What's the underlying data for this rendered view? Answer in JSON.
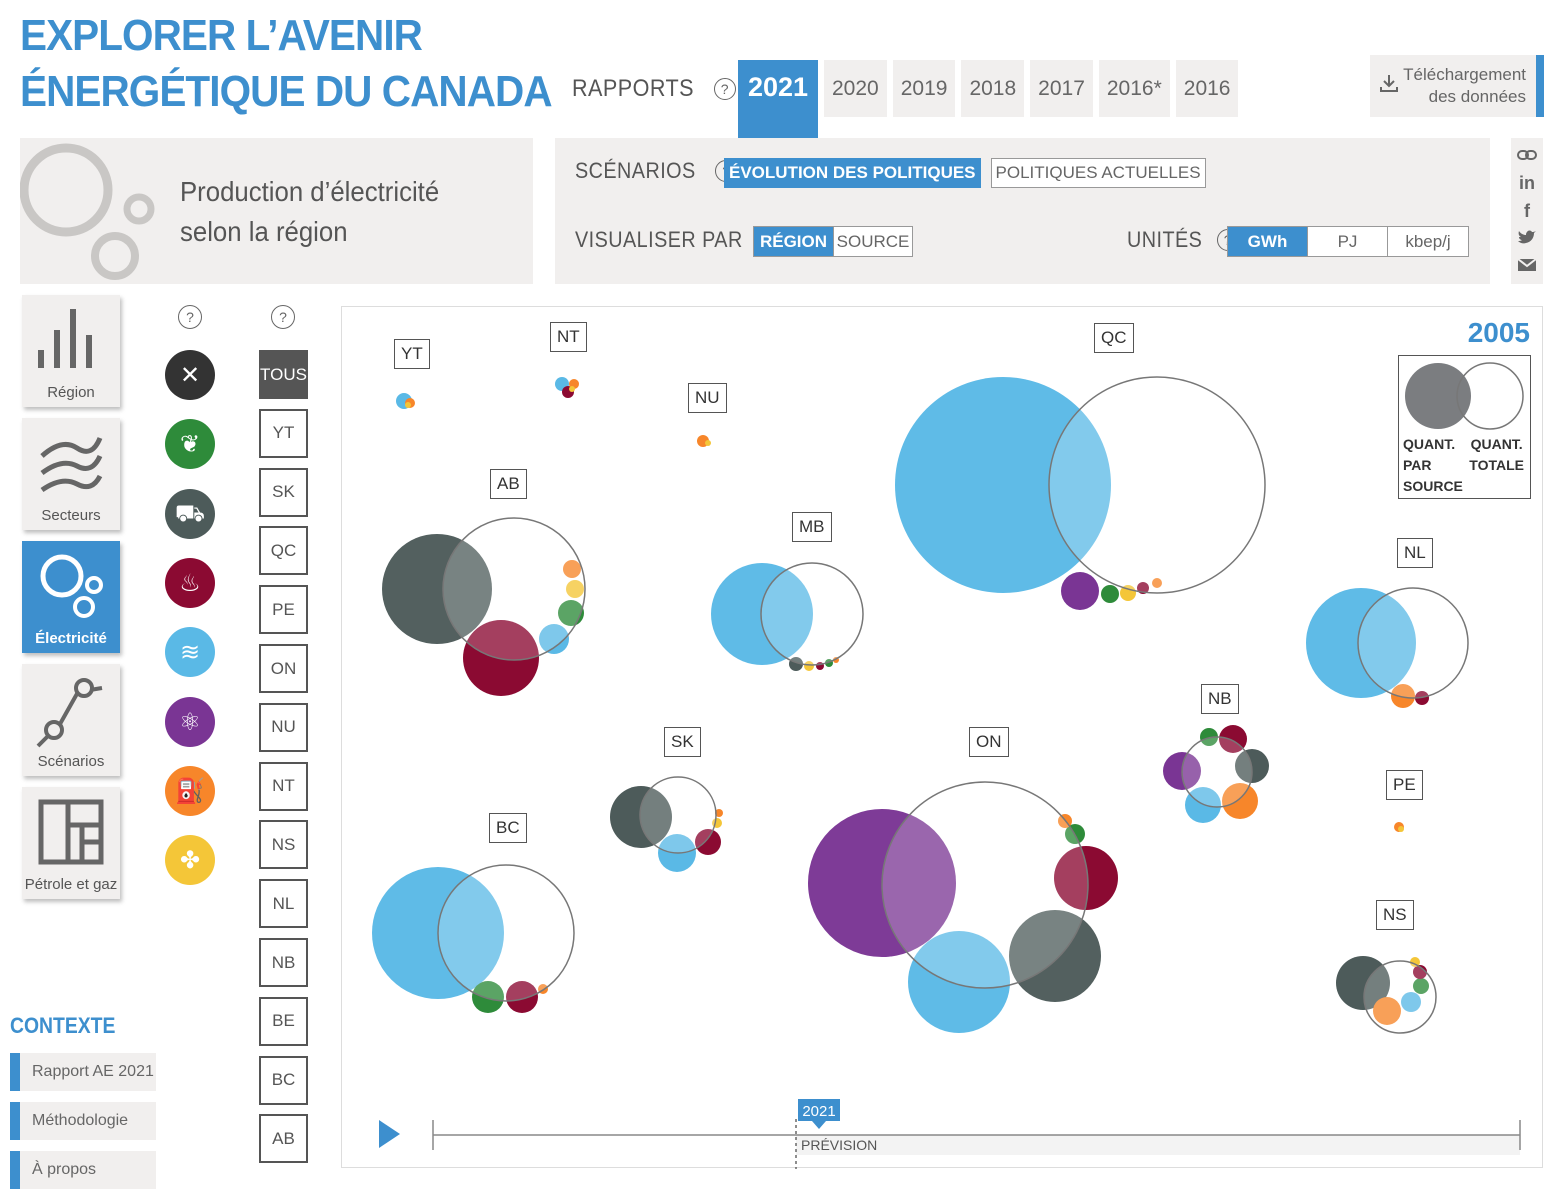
{
  "header": {
    "title_line1": "EXPLORER L’AVENIR",
    "title_line2": "ÉNERGÉTIQUE DU CANADA"
  },
  "reports": {
    "label": "RAPPORTS",
    "years": [
      "2021",
      "2020",
      "2019",
      "2018",
      "2017",
      "2016*",
      "2016"
    ],
    "active_year": "2021"
  },
  "download": {
    "line1": "Téléchargement",
    "line2": "des données"
  },
  "visualization": {
    "title_line1": "Production d’électricité",
    "title_line2": "selon la région"
  },
  "scenarios": {
    "label": "SCÉNARIOS",
    "options": [
      "ÉVOLUTION DES POLITIQUES",
      "POLITIQUES ACTUELLES"
    ],
    "active": "ÉVOLUTION DES POLITIQUES"
  },
  "view_by": {
    "label": "VISUALISER PAR",
    "options": [
      "RÉGION",
      "SOURCE"
    ],
    "active": "RÉGION"
  },
  "units": {
    "label": "UNITÉS",
    "options": [
      "GWh",
      "PJ",
      "kbep/j"
    ],
    "active": "GWh"
  },
  "share": {
    "icons": [
      "link-icon",
      "linkedin-icon",
      "facebook-icon",
      "twitter-icon",
      "email-icon"
    ],
    "linkedin_text": "in",
    "facebook_text": "f"
  },
  "nav": [
    {
      "label": "Région",
      "icon": "bar-chart-icon",
      "active": false
    },
    {
      "label": "Secteurs",
      "icon": "waves-icon",
      "active": false
    },
    {
      "label": "Électricité",
      "icon": "bubbles-icon",
      "active": true
    },
    {
      "label": "Scénarios",
      "icon": "scenario-icon",
      "active": false
    },
    {
      "label": "Pétrole et gaz",
      "icon": "layout-icon",
      "active": false
    }
  ],
  "help_symbol": "?",
  "sources": [
    {
      "name": "tout-effacer",
      "icon": "close-icon",
      "color": "#333333",
      "glyph": "✕"
    },
    {
      "name": "biomasse",
      "icon": "leaf-icon",
      "color": "#2e8b3a",
      "glyph": "❦"
    },
    {
      "name": "charbon",
      "icon": "coal-cart-icon",
      "color": "#4d5b5a",
      "glyph": "⛟"
    },
    {
      "name": "gaz",
      "icon": "flame-icon",
      "color": "#8b0a32",
      "glyph": "♨"
    },
    {
      "name": "hydro",
      "icon": "water-icon",
      "color": "#5ab9e6",
      "glyph": "≋"
    },
    {
      "name": "nucleaire",
      "icon": "atom-icon",
      "color": "#7a3594",
      "glyph": "⚛"
    },
    {
      "name": "petrole",
      "icon": "fuel-pump-icon",
      "color": "#f7862a",
      "glyph": "⛽"
    },
    {
      "name": "solaire-eolien",
      "icon": "pinwheel-icon",
      "color": "#f4c638",
      "glyph": "✤"
    }
  ],
  "regions": [
    "TOUS",
    "YT",
    "SK",
    "QC",
    "PE",
    "ON",
    "NU",
    "NT",
    "NS",
    "NL",
    "NB",
    "BE",
    "BC",
    "AB"
  ],
  "active_region": "TOUS",
  "context": {
    "title": "CONTEXTE",
    "links": [
      "Rapport AE 2021",
      "Méthodologie",
      "À propos"
    ]
  },
  "chart_data": {
    "type": "bubble",
    "year_shown": "2005",
    "legend": {
      "source_label": [
        "QUANT.",
        "PAR",
        "SOURCE"
      ],
      "total_label": [
        "QUANT.",
        "TOTALE"
      ]
    },
    "colors": {
      "hydro": "#5ab9e6",
      "charbon": "#4d5b5a",
      "gaz": "#8b0a32",
      "nucleaire": "#7a3594",
      "biomasse": "#2e8b3a",
      "petrole": "#f7862a",
      "solaire_eolien": "#f4c638"
    },
    "timeline": {
      "marker_label": "2021",
      "forecast_label": "PRÉVISION"
    },
    "regions": [
      {
        "code": "YT"
      },
      {
        "code": "NT"
      },
      {
        "code": "NU"
      },
      {
        "code": "QC"
      },
      {
        "code": "AB"
      },
      {
        "code": "MB"
      },
      {
        "code": "NL"
      },
      {
        "code": "NB"
      },
      {
        "code": "SK"
      },
      {
        "code": "ON"
      },
      {
        "code": "PE"
      },
      {
        "code": "BC"
      },
      {
        "code": "NS"
      }
    ]
  }
}
